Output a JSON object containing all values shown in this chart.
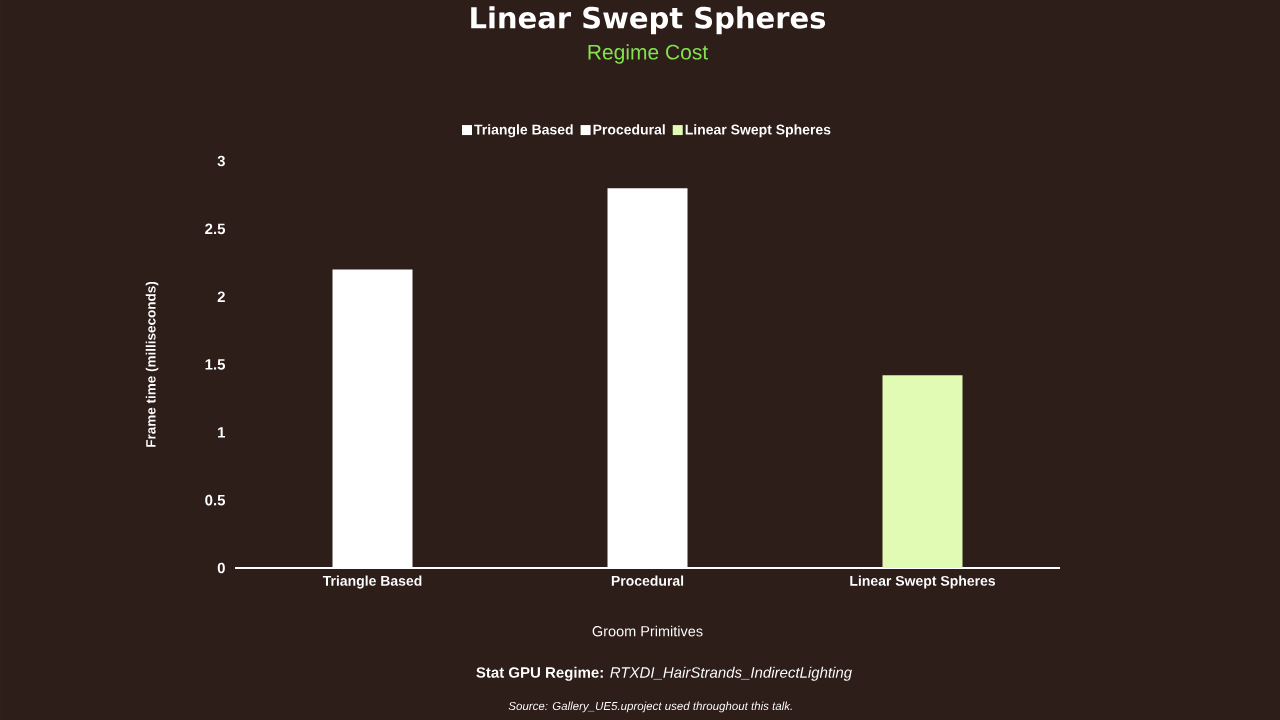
{
  "chart_data": {
    "type": "bar",
    "title": "Linear Swept Spheres",
    "subtitle": "Regime Cost",
    "xlabel": "Groom Primitives",
    "ylabel": "Frame time (milliseconds)",
    "categories": [
      "Triangle Based",
      "Procedural",
      "Linear Swept Spheres"
    ],
    "series": [
      {
        "name": "Triangle Based",
        "color": "#ffffff",
        "values": [
          2.2,
          null,
          null
        ]
      },
      {
        "name": "Procedural",
        "color": "#ffffff",
        "values": [
          null,
          2.8,
          null
        ]
      },
      {
        "name": "Linear Swept Spheres",
        "color": "#e2fbb4",
        "values": [
          null,
          null,
          1.42
        ]
      }
    ],
    "ylim": [
      0,
      3
    ],
    "yticks": [
      0,
      0.5,
      1,
      1.5,
      2,
      2.5,
      3
    ],
    "legend": "top",
    "annotations": [
      "**Stat GPU Regime:** *RTXDI_HairStrands_IndirectLighting*",
      "Source: Gallery_UE5.uproject used throughout this talk."
    ]
  }
}
